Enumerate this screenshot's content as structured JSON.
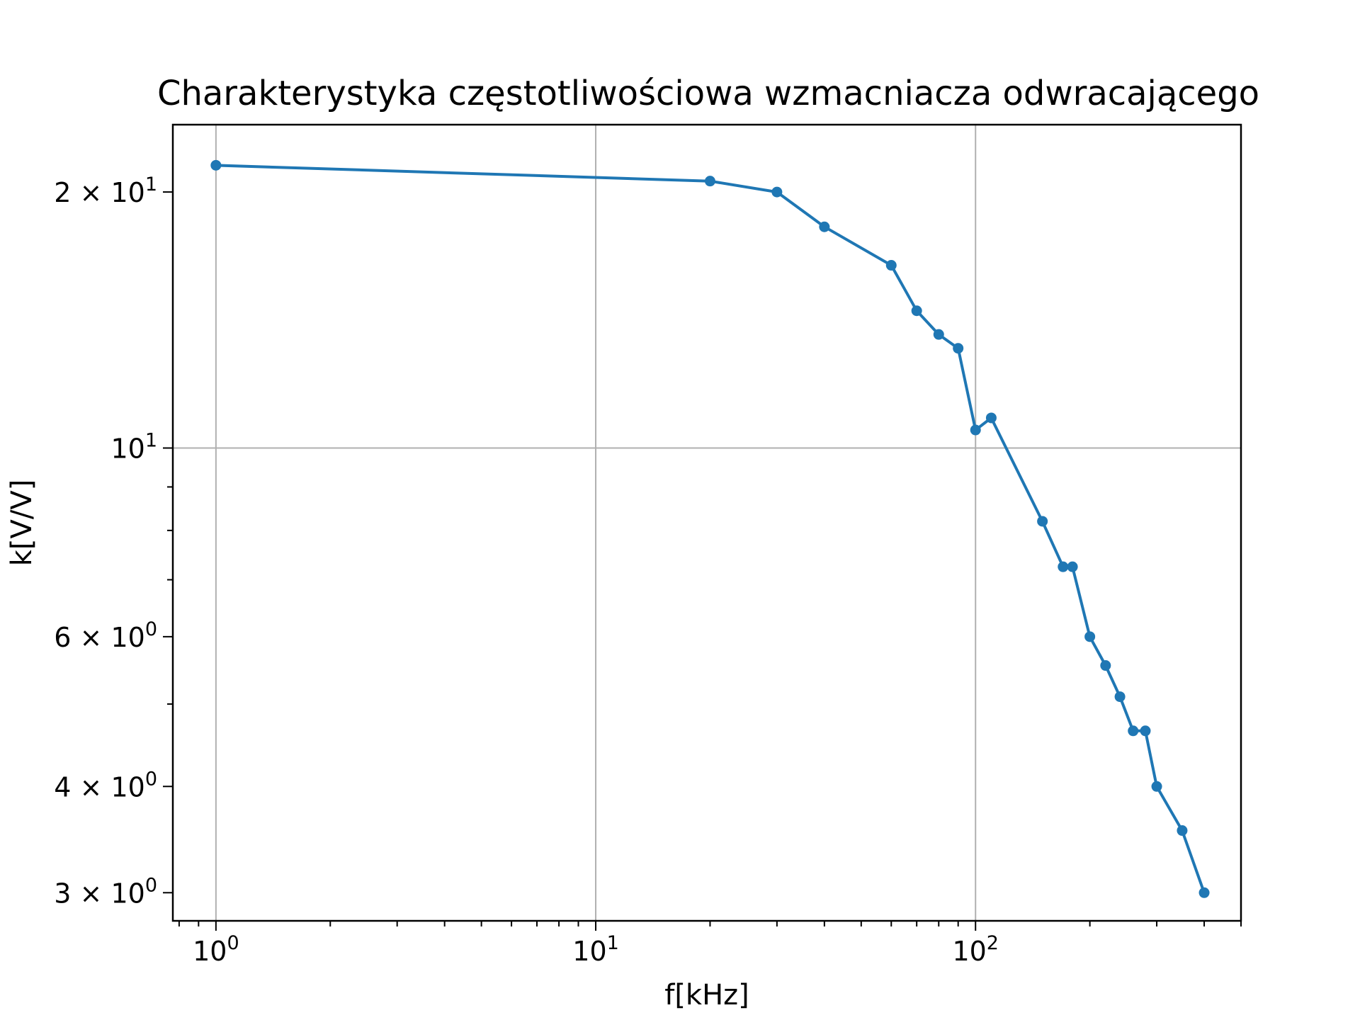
{
  "chart_data": {
    "type": "line",
    "title": "Charakterystyka częstotliwościowa wzmacniacza odwracającego",
    "xlabel": "f[kHz]",
    "ylabel": "k[V/V]",
    "xscale": "log",
    "yscale": "log",
    "xlim": [
      0.77,
      500
    ],
    "ylim": [
      2.78,
      24.0
    ],
    "grid": true,
    "x_ticks": [
      {
        "value": 1,
        "base": "10",
        "exp": "0"
      },
      {
        "value": 10,
        "base": "10",
        "exp": "1"
      },
      {
        "value": 100,
        "base": "10",
        "exp": "2"
      }
    ],
    "y_ticks": [
      {
        "value": 20,
        "mant": "2",
        "base": "10",
        "exp": "1"
      },
      {
        "value": 10,
        "mant": "",
        "base": "10",
        "exp": "1"
      },
      {
        "value": 6,
        "mant": "6",
        "base": "10",
        "exp": "0"
      },
      {
        "value": 4,
        "mant": "4",
        "base": "10",
        "exp": "0"
      },
      {
        "value": 3,
        "mant": "3",
        "base": "10",
        "exp": "0"
      }
    ],
    "series": [
      {
        "color": "#1f77b4",
        "marker": "circle",
        "x": [
          1,
          20,
          30,
          40,
          60,
          70,
          80,
          90,
          100,
          110,
          150,
          170,
          180,
          200,
          220,
          240,
          260,
          280,
          300,
          350,
          400
        ],
        "y": [
          21.5,
          20.6,
          20.0,
          18.2,
          16.4,
          14.5,
          13.6,
          13.1,
          10.5,
          10.85,
          8.2,
          7.25,
          7.25,
          6.0,
          5.55,
          5.1,
          4.65,
          4.65,
          4.0,
          3.55,
          3.0
        ]
      }
    ]
  }
}
